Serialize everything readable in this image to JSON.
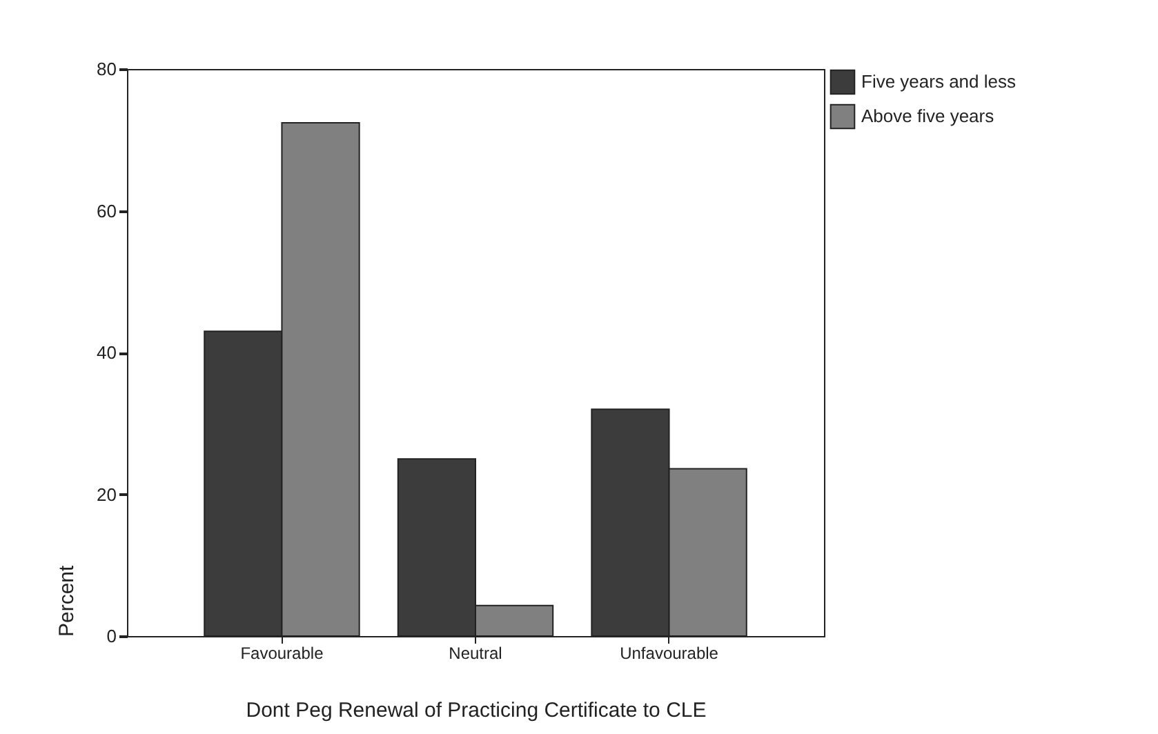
{
  "chart_data": {
    "type": "bar",
    "xlabel": "Dont Peg Renewal of Practicing Certificate to CLE",
    "ylabel": "Percent",
    "categories": [
      "Favourable",
      "Neutral",
      "Unfavourable"
    ],
    "series": [
      {
        "name": "Five years and less",
        "color": "#3c3c3c",
        "values": [
          43,
          25,
          32
        ]
      },
      {
        "name": "Above five years",
        "color": "#808080",
        "values": [
          72.4,
          4.3,
          23.6
        ]
      }
    ],
    "ylim": [
      0,
      80
    ],
    "yticks": [
      0,
      20,
      40,
      60,
      80
    ],
    "grid": false,
    "legend": "right"
  }
}
